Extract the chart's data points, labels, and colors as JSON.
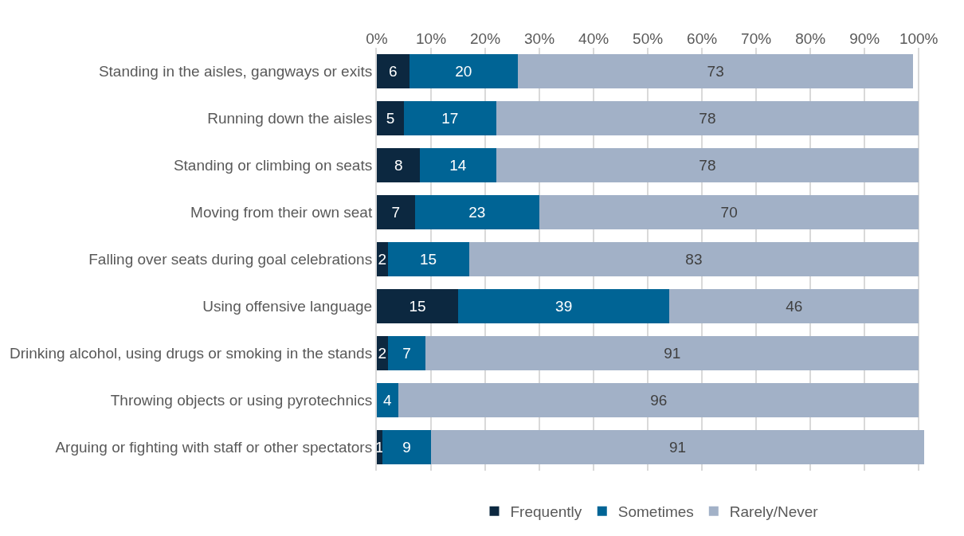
{
  "chart_data": {
    "type": "bar",
    "orientation": "horizontal",
    "stacked": true,
    "categories": [
      "Standing in the aisles, gangways or exits",
      "Running down the aisles",
      "Standing or climbing on seats",
      "Moving from their own seat",
      "Falling over seats during goal celebrations",
      "Using offensive language",
      "Drinking alcohol, using drugs or smoking in the stands",
      "Throwing objects or using pyrotechnics",
      "Arguing or fighting with staff or other spectators"
    ],
    "series": [
      {
        "name": "Frequently",
        "color": "#0c2840",
        "values": [
          6,
          5,
          8,
          7,
          2,
          15,
          2,
          0,
          1
        ],
        "value_labels": [
          "6",
          "5",
          "8",
          "7",
          "2",
          "15",
          "2",
          null,
          "1"
        ]
      },
      {
        "name": "Sometimes",
        "color": "#006495",
        "values": [
          20,
          17,
          14,
          23,
          15,
          39,
          7,
          4,
          9
        ],
        "value_labels": [
          "20",
          "17",
          "14",
          "23",
          "15",
          "39",
          "7",
          "4",
          "9"
        ]
      },
      {
        "name": "Rarely/Never",
        "color": "#a2b1c7",
        "values": [
          73,
          78,
          78,
          70,
          83,
          46,
          91,
          96,
          91
        ],
        "value_labels": [
          "73",
          "78",
          "78",
          "70",
          "83",
          "46",
          "91",
          "96",
          "91"
        ]
      }
    ],
    "xlim": [
      0,
      101
    ],
    "xticks": [
      {
        "value": 0,
        "label": "0%"
      },
      {
        "value": 10,
        "label": "10%"
      },
      {
        "value": 20,
        "label": "20%"
      },
      {
        "value": 30,
        "label": "30%"
      },
      {
        "value": 40,
        "label": "40%"
      },
      {
        "value": 50,
        "label": "50%"
      },
      {
        "value": 60,
        "label": "60%"
      },
      {
        "value": 70,
        "label": "70%"
      },
      {
        "value": 80,
        "label": "80%"
      },
      {
        "value": 90,
        "label": "90%"
      },
      {
        "value": 100,
        "label": "100%"
      }
    ],
    "grid": "x",
    "legend": "bottom"
  }
}
